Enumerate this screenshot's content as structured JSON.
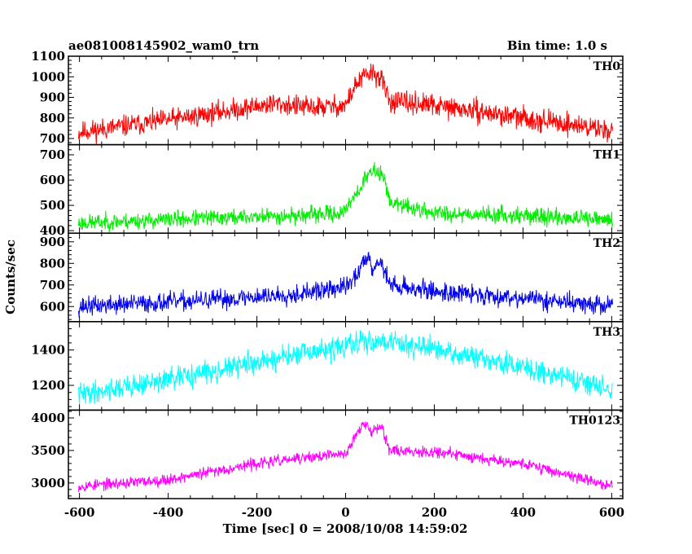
{
  "header": {
    "title": "ae081008145902_wam0_trn",
    "bin_time": "Bin time: 1.0 s"
  },
  "chart_data": {
    "type": "line",
    "xlabel": "Time [sec] 0 = 2008/10/08 14:59:02",
    "ylabel": "Counts/sec",
    "xlim": [
      -625,
      625
    ],
    "xticks": [
      -600,
      -400,
      -200,
      0,
      200,
      400,
      600
    ],
    "panels": [
      {
        "name": "TH0",
        "color": "#ff0000",
        "ylim": [
          670,
          1100
        ],
        "yticks": [
          700,
          800,
          900,
          1000,
          1100
        ],
        "profile": [
          [
            -600,
            730
          ],
          [
            -400,
            790
          ],
          [
            -160,
            870
          ],
          [
            -80,
            850
          ],
          [
            0,
            860
          ],
          [
            20,
            950
          ],
          [
            40,
            1000
          ],
          [
            60,
            1020
          ],
          [
            80,
            990
          ],
          [
            100,
            880
          ],
          [
            200,
            860
          ],
          [
            400,
            800
          ],
          [
            600,
            740
          ]
        ],
        "noise": 45,
        "seed": 11
      },
      {
        "name": "TH1",
        "color": "#00ee00",
        "ylim": [
          390,
          740
        ],
        "yticks": [
          400,
          500,
          600,
          700
        ],
        "profile": [
          [
            -600,
            430
          ],
          [
            -300,
            450
          ],
          [
            -100,
            460
          ],
          [
            0,
            470
          ],
          [
            10,
            520
          ],
          [
            30,
            560
          ],
          [
            50,
            620
          ],
          [
            70,
            640
          ],
          [
            90,
            600
          ],
          [
            100,
            510
          ],
          [
            200,
            470
          ],
          [
            400,
            460
          ],
          [
            600,
            440
          ]
        ],
        "noise": 28,
        "seed": 23
      },
      {
        "name": "TH2",
        "color": "#0000ee",
        "ylim": [
          530,
          940
        ],
        "yticks": [
          600,
          700,
          800,
          900
        ],
        "profile": [
          [
            -600,
            600
          ],
          [
            -300,
            630
          ],
          [
            -100,
            660
          ],
          [
            0,
            690
          ],
          [
            20,
            730
          ],
          [
            40,
            800
          ],
          [
            50,
            850
          ],
          [
            60,
            780
          ],
          [
            80,
            810
          ],
          [
            100,
            700
          ],
          [
            200,
            670
          ],
          [
            400,
            640
          ],
          [
            600,
            600
          ]
        ],
        "noise": 38,
        "seed": 37
      },
      {
        "name": "TH3",
        "color": "#00ffff",
        "ylim": [
          1060,
          1560
        ],
        "yticks": [
          1200,
          1400
        ],
        "profile": [
          [
            -600,
            1150
          ],
          [
            -400,
            1230
          ],
          [
            -200,
            1330
          ],
          [
            0,
            1420
          ],
          [
            50,
            1450
          ],
          [
            100,
            1450
          ],
          [
            200,
            1400
          ],
          [
            400,
            1300
          ],
          [
            500,
            1250
          ],
          [
            600,
            1170
          ]
        ],
        "noise": 55,
        "seed": 41
      },
      {
        "name": "TH0123",
        "color": "#ff00ff",
        "ylim": [
          2760,
          4120
        ],
        "yticks": [
          3000,
          3500,
          4000
        ],
        "profile": [
          [
            -600,
            2950
          ],
          [
            -400,
            3050
          ],
          [
            -200,
            3300
          ],
          [
            -100,
            3380
          ],
          [
            0,
            3450
          ],
          [
            20,
            3700
          ],
          [
            40,
            3900
          ],
          [
            60,
            3800
          ],
          [
            80,
            3900
          ],
          [
            100,
            3500
          ],
          [
            200,
            3480
          ],
          [
            400,
            3300
          ],
          [
            600,
            2950
          ]
        ],
        "noise": 75,
        "seed": 53
      }
    ]
  }
}
